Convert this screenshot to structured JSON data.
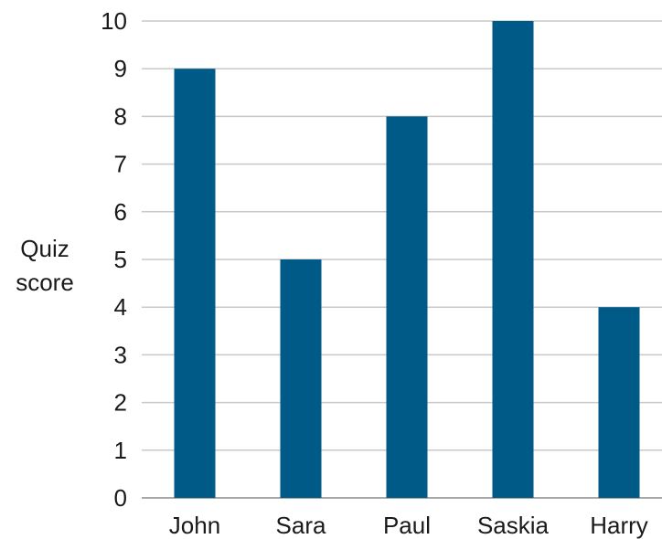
{
  "chart_data": {
    "type": "bar",
    "categories": [
      "John",
      "Sara",
      "Paul",
      "Saskia",
      "Harry"
    ],
    "values": [
      9,
      5,
      8,
      10,
      4
    ],
    "ylabel_lines": [
      "Quiz",
      "score"
    ],
    "xlabel": "",
    "title": "",
    "ylim": [
      0,
      10
    ],
    "yticks": [
      "0",
      "1",
      "2",
      "3",
      "4",
      "5",
      "6",
      "7",
      "8",
      "9",
      "10"
    ],
    "grid": true,
    "legend": "none",
    "bar_color": "#005a87",
    "grid_color": "#c8c8c8"
  }
}
